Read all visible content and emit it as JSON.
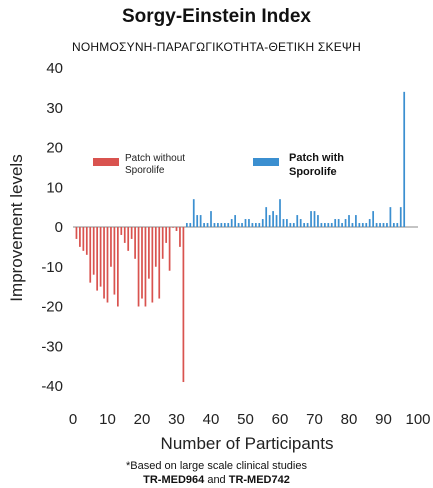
{
  "chart_data": {
    "type": "bar",
    "title": "Sorgy-Einstein Index",
    "subtitle": "ΝΟΗΜΟΣΥΝΗ-ΠΑΡΑΓΩΓΙΚΟΤΗΤΑ-ΘΕΤΙΚΗ ΣΚΕΨΗ",
    "xlabel": "Number of Participants",
    "ylabel": "Improvement levels",
    "xlim": [
      0,
      100
    ],
    "ylim": [
      -40,
      40
    ],
    "x_ticks": [
      0,
      10,
      20,
      30,
      40,
      50,
      60,
      70,
      80,
      90,
      100
    ],
    "y_ticks": [
      40,
      30,
      20,
      10,
      0,
      -10,
      -20,
      -30,
      -40
    ],
    "legend": {
      "placement": "upper-left-inside"
    },
    "series": [
      {
        "name": "Patch without Sporolife",
        "color": "#d9534f",
        "bar_width": 0.5,
        "x": [
          1,
          2,
          3,
          4,
          5,
          6,
          7,
          8,
          9,
          10,
          11,
          12,
          13,
          14,
          15,
          16,
          17,
          18,
          19,
          20,
          21,
          22,
          23,
          24,
          25,
          26,
          27,
          28,
          29,
          30,
          31,
          32
        ],
        "values": [
          -3,
          -5,
          -6,
          -7,
          -14,
          -12,
          -16,
          -15,
          -18,
          -19,
          -10,
          -17,
          -20,
          -2,
          -4,
          -6,
          -3,
          -8,
          -20,
          -18,
          -20,
          -13,
          -19,
          -10,
          -18,
          -8,
          -4,
          -11,
          0,
          -1,
          -5,
          -39
        ]
      },
      {
        "name": "Patch with Sporolife",
        "color": "#3b8fd0",
        "bar_width": 0.5,
        "x": [
          33,
          34,
          35,
          36,
          37,
          38,
          39,
          40,
          41,
          42,
          43,
          44,
          45,
          46,
          47,
          48,
          49,
          50,
          51,
          52,
          53,
          54,
          55,
          56,
          57,
          58,
          59,
          60,
          61,
          62,
          63,
          64,
          65,
          66,
          67,
          68,
          69,
          70,
          71,
          72,
          73,
          74,
          75,
          76,
          77,
          78,
          79,
          80,
          81,
          82,
          83,
          84,
          85,
          86,
          87,
          88,
          89,
          90,
          91,
          92,
          93,
          94,
          95,
          96
        ],
        "values": [
          1,
          1,
          7,
          3,
          3,
          1,
          1,
          4,
          1,
          1,
          1,
          1,
          1,
          2,
          3,
          1,
          1,
          2,
          2,
          1,
          1,
          1,
          2,
          5,
          3,
          4,
          3,
          7,
          2,
          2,
          1,
          1,
          3,
          2,
          1,
          1,
          4,
          4,
          3,
          1,
          1,
          1,
          1,
          2,
          2,
          1,
          2,
          3,
          1,
          3,
          1,
          1,
          1,
          2,
          4,
          1,
          1,
          1,
          1,
          5,
          1,
          1,
          5,
          34
        ]
      }
    ]
  },
  "legend_labels": {
    "without_line1": "Patch without",
    "without_line2": "Sporolife",
    "with_line1": "Patch with",
    "with_line2": "Sporolife"
  },
  "footnotes": {
    "line1": "*Based on large scale clinical studies",
    "line2_a": "TR-MED964",
    "line2_and": " and ",
    "line2_b": "TR-MED742"
  }
}
